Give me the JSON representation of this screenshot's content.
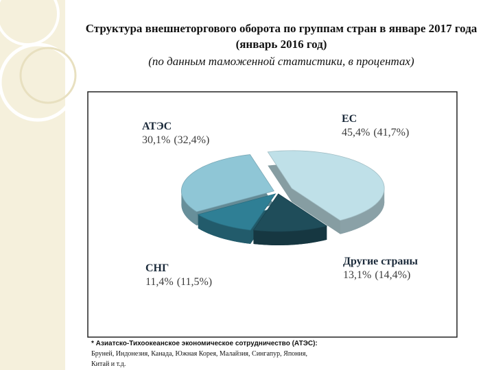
{
  "chart_data": {
    "type": "pie",
    "title": "Структура внешнеторгового оборота по группам стран в январе 2017 года (январь 2016 год)",
    "subtitle": "(по данным таможенной статистики, в процентах)",
    "categories": [
      "ЕС",
      "Другие страны",
      "СНГ",
      "АТЭС"
    ],
    "values": [
      45.4,
      13.1,
      11.4,
      30.1
    ],
    "value_labels": [
      "45,4%",
      "13,1%",
      "11,4%",
      "30,1%"
    ],
    "previous_labels": [
      "(41,7%)",
      "(14,4%)",
      "(11,5%)",
      "(32,4%)"
    ],
    "colors": [
      "#bfe0e8",
      "#1f4d5a",
      "#2f7f95",
      "#8fc6d6"
    ]
  },
  "footnote": {
    "bold": "* Азиатско-Тихоокеанское экономическое сотрудничество (АТЭС):",
    "text": "Бруней, Индонезия, Канада, Южная Корея, Малайзия, Сингапур, Япония, Китай  и т.д."
  }
}
